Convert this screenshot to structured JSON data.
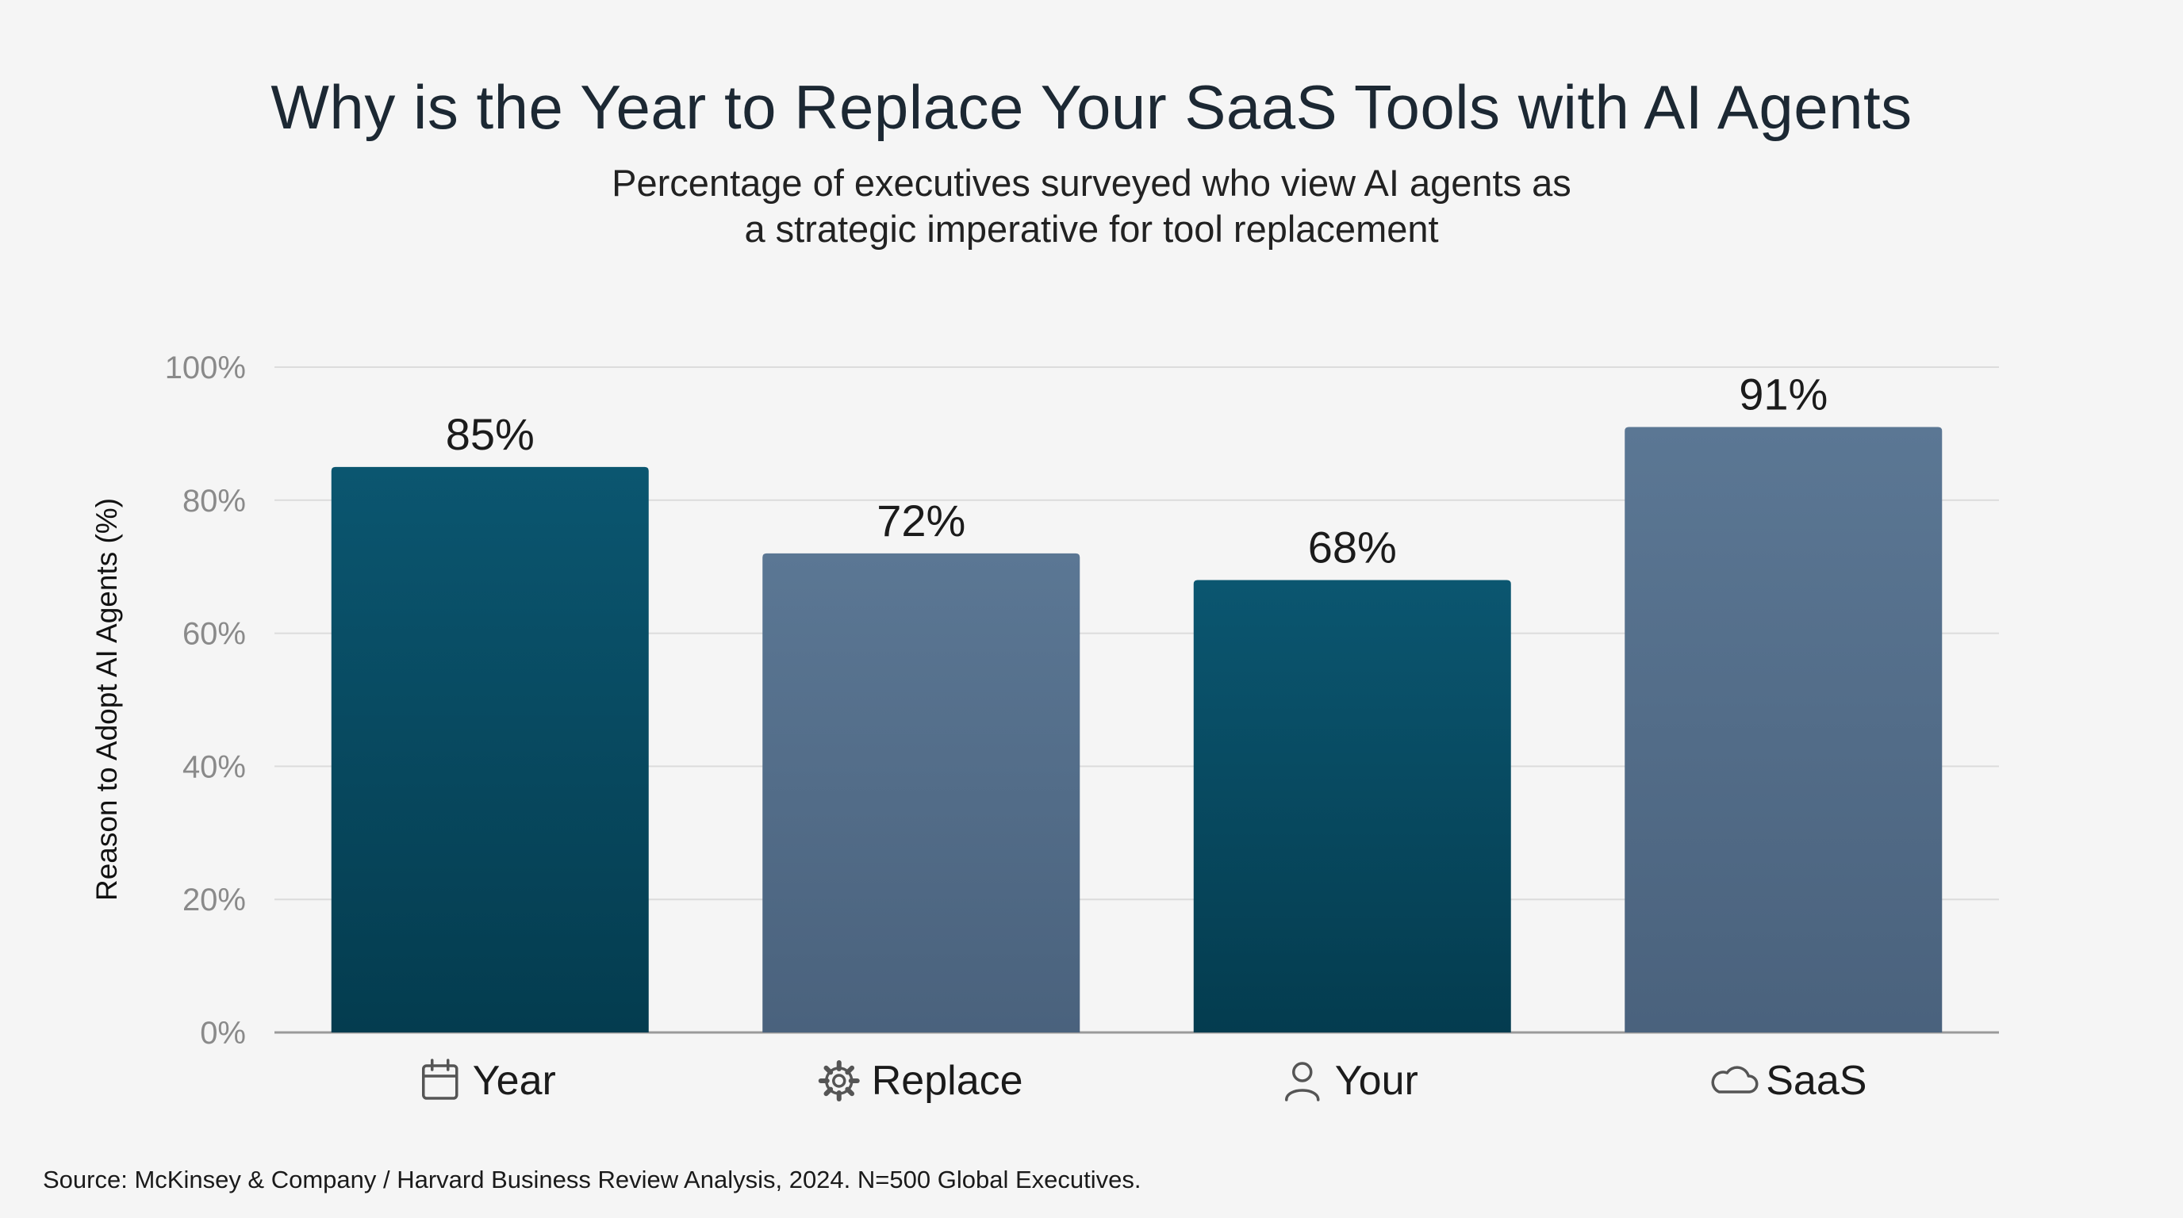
{
  "chart_data": {
    "type": "bar",
    "title": "Why is the Year to Replace Your SaaS Tools with AI Agents",
    "subtitle_lines": [
      "Percentage of executives surveyed who view AI agents as",
      "a strategic imperative for tool replacement"
    ],
    "ylabel": "Reason to Adopt AI Agents (%)",
    "xlabel": "",
    "ylim": [
      0,
      100
    ],
    "yticks": [
      0,
      20,
      40,
      60,
      80,
      100
    ],
    "ytick_labels": [
      "0%",
      "20%",
      "40%",
      "60%",
      "80%",
      "100%"
    ],
    "grid": true,
    "categories": [
      "Year",
      "Replace",
      "Your",
      "SaaS"
    ],
    "category_icons": [
      "calendar-icon",
      "gear-icon",
      "user-icon",
      "cloud-icon"
    ],
    "values": [
      85,
      72,
      68,
      91
    ],
    "value_labels": [
      "85%",
      "72%",
      "68%",
      "91%"
    ],
    "bar_colors": [
      "#0a4d63",
      "#557089",
      "#0a4d63",
      "#557089"
    ]
  },
  "source": "Source: McKinsey & Company / Harvard Business Review Analysis, 2024. N=500 Global Executives."
}
